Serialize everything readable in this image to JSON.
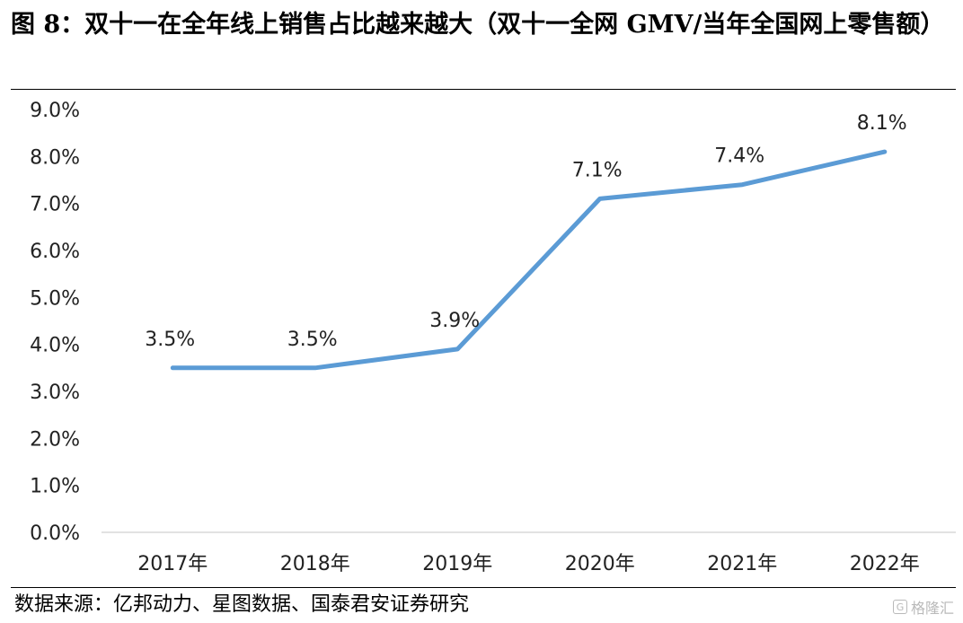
{
  "figure": {
    "title": "图 8：双十一在全年线上销售占比越来越大（双十一全网 GMV/当年全国网上零售额）",
    "source": "数据来源：亿邦动力、星图数据、国泰君安证券研究",
    "watermark": "格隆汇",
    "watermark_icon": "g-logo-icon"
  },
  "chart_data": {
    "type": "line",
    "title": "图 8：双十一在全年线上销售占比越来越大（双十一全网 GMV/当年全国网上零售额）",
    "xlabel": "",
    "ylabel": "",
    "categories": [
      "2017年",
      "2018年",
      "2019年",
      "2020年",
      "2021年",
      "2022年"
    ],
    "series": [
      {
        "values": [
          3.5,
          3.5,
          3.9,
          7.1,
          7.4,
          8.1
        ],
        "labels": [
          "3.5%",
          "3.5%",
          "3.9%",
          "7.1%",
          "7.4%",
          "8.1%"
        ],
        "color": "#5b9bd5"
      }
    ],
    "yticks": [
      "0.0%",
      "1.0%",
      "2.0%",
      "3.0%",
      "4.0%",
      "5.0%",
      "6.0%",
      "7.0%",
      "8.0%",
      "9.0%"
    ],
    "ylim": [
      0,
      9
    ],
    "grid": false,
    "legend": "none"
  }
}
